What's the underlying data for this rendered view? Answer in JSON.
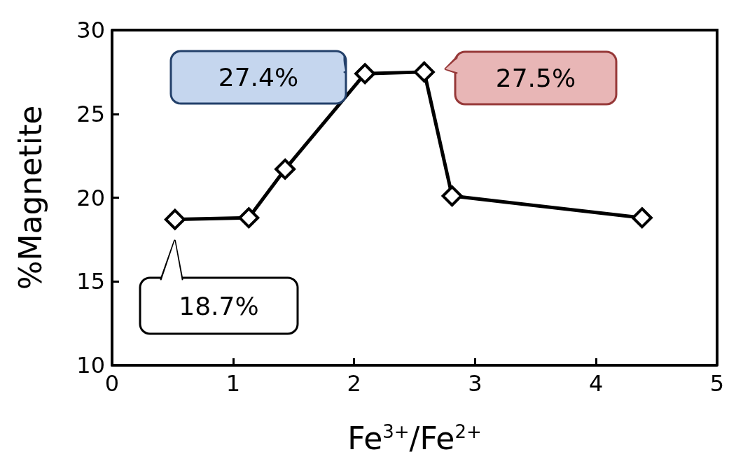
{
  "chart_data": {
    "type": "line",
    "xlabel": "Fe$^{3+}$/Fe$^{2+}$",
    "ylabel": "%Magnetite",
    "x": [
      0.52,
      1.13,
      1.43,
      2.09,
      2.58,
      2.81,
      4.38
    ],
    "series": [
      {
        "color": "#000000",
        "values": [
          18.7,
          18.8,
          21.7,
          27.4,
          27.5,
          20.1,
          18.8
        ]
      }
    ],
    "xlim": [
      0,
      5
    ],
    "xticks": [
      0,
      1,
      2,
      3,
      4,
      5
    ],
    "ylim": [
      10,
      30
    ],
    "yticks": [
      10,
      15,
      20,
      25,
      30
    ],
    "marker": "diamond",
    "line_style": "solid",
    "grid": false,
    "annotations": [
      {
        "text": "18.7%",
        "x": 0.52,
        "y": 18.7
      },
      {
        "text": "27.4%",
        "x": 2.09,
        "y": 27.4
      },
      {
        "text": "27.5%",
        "x": 2.58,
        "y": 27.5
      }
    ]
  }
}
